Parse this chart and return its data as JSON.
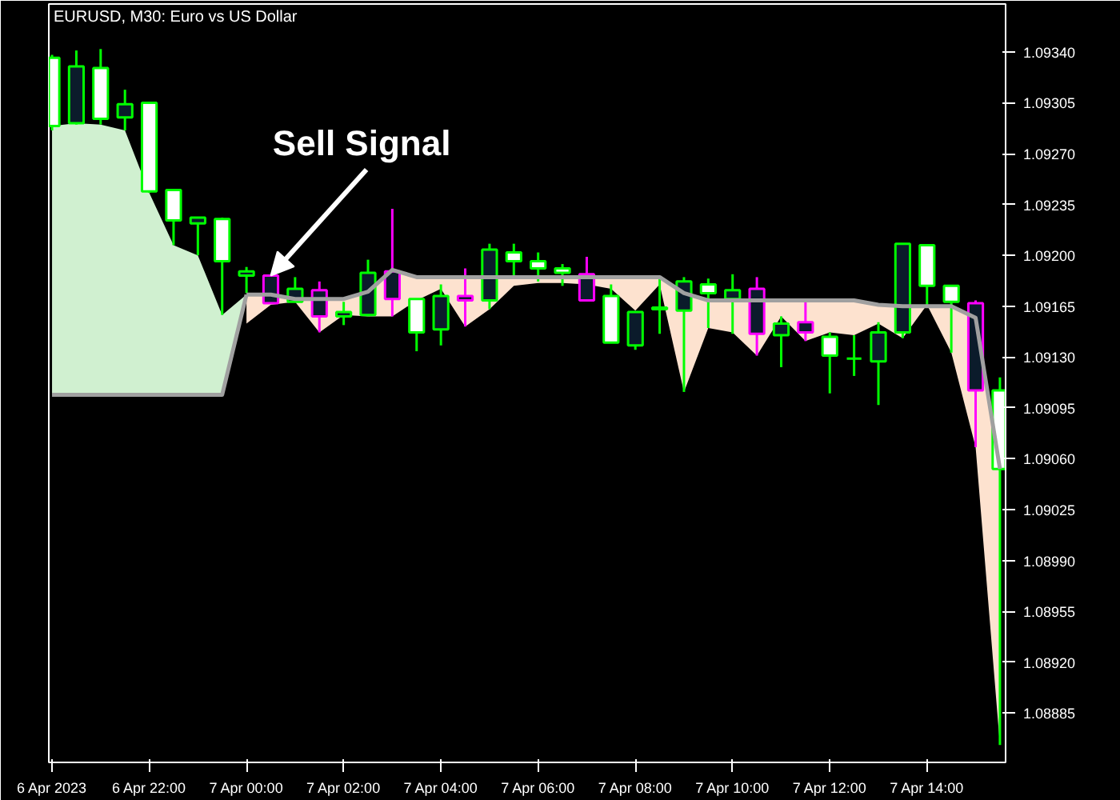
{
  "chart_data": {
    "type": "candlestick",
    "title": "EURUSD, M30:  Euro vs US Dollar",
    "x": [
      "2023-04-06T20:00",
      "2023-04-06T20:30",
      "2023-04-06T21:00",
      "2023-04-06T21:30",
      "2023-04-06T22:00",
      "2023-04-06T22:30",
      "2023-04-06T23:00",
      "2023-04-06T23:30",
      "2023-04-07T00:00",
      "2023-04-07T00:30",
      "2023-04-07T01:00",
      "2023-04-07T01:30",
      "2023-04-07T02:00",
      "2023-04-07T02:30",
      "2023-04-07T03:00",
      "2023-04-07T03:30",
      "2023-04-07T04:00",
      "2023-04-07T04:30",
      "2023-04-07T05:00",
      "2023-04-07T05:30",
      "2023-04-07T06:00",
      "2023-04-07T06:30",
      "2023-04-07T07:00",
      "2023-04-07T07:30",
      "2023-04-07T08:00",
      "2023-04-07T08:30",
      "2023-04-07T09:00",
      "2023-04-07T09:30",
      "2023-04-07T10:00",
      "2023-04-07T10:30",
      "2023-04-07T11:00",
      "2023-04-07T11:30",
      "2023-04-07T12:00",
      "2023-04-07T12:30",
      "2023-04-07T13:00",
      "2023-04-07T13:30",
      "2023-04-07T14:00",
      "2023-04-07T14:30",
      "2023-04-07T15:00",
      "2023-04-07T15:30"
    ],
    "ohlc": [
      [
        1.09289,
        1.09338,
        1.09286,
        1.09336
      ],
      [
        1.0933,
        1.09341,
        1.0929,
        1.09291
      ],
      [
        1.09294,
        1.09342,
        1.0929,
        1.09329
      ],
      [
        1.09304,
        1.09314,
        1.09286,
        1.09295
      ],
      [
        1.09244,
        1.09305,
        1.09243,
        1.09305
      ],
      [
        1.09224,
        1.09245,
        1.09207,
        1.09245
      ],
      [
        1.09226,
        1.09226,
        1.092,
        1.09222
      ],
      [
        1.09196,
        1.09226,
        1.09159,
        1.09225
      ],
      [
        1.09189,
        1.09192,
        1.09174,
        1.09186
      ],
      [
        1.09186,
        1.09186,
        1.09167,
        1.09167
      ],
      [
        1.09177,
        1.09185,
        1.09168,
        1.09168
      ],
      [
        1.09176,
        1.09182,
        1.09147,
        1.09158
      ],
      [
        1.09161,
        1.09168,
        1.09152,
        1.09158
      ],
      [
        1.09188,
        1.09197,
        1.09158,
        1.09159
      ],
      [
        1.09189,
        1.09232,
        1.09158,
        1.0917
      ],
      [
        1.09147,
        1.0917,
        1.09134,
        1.0917
      ],
      [
        1.09172,
        1.0918,
        1.09138,
        1.09149
      ],
      [
        1.09172,
        1.09191,
        1.09151,
        1.09169
      ],
      [
        1.09204,
        1.09208,
        1.09163,
        1.09169
      ],
      [
        1.09196,
        1.09208,
        1.09185,
        1.09202
      ],
      [
        1.09191,
        1.09202,
        1.09182,
        1.09196
      ],
      [
        1.09188,
        1.09194,
        1.09179,
        1.09191
      ],
      [
        1.09187,
        1.09199,
        1.09169,
        1.09169
      ],
      [
        1.0914,
        1.0918,
        1.0914,
        1.09172
      ],
      [
        1.09161,
        1.09161,
        1.09135,
        1.09138
      ],
      [
        1.09164,
        1.09185,
        1.09146,
        1.09163
      ],
      [
        1.09182,
        1.09185,
        1.09106,
        1.09162
      ],
      [
        1.09174,
        1.09184,
        1.0915,
        1.0918
      ],
      [
        1.09176,
        1.09187,
        1.09146,
        1.0917
      ],
      [
        1.09177,
        1.09185,
        1.09131,
        1.09146
      ],
      [
        1.09153,
        1.09158,
        1.09123,
        1.09145
      ],
      [
        1.09154,
        1.09168,
        1.09141,
        1.09147
      ],
      [
        1.09131,
        1.09147,
        1.09105,
        1.09144
      ],
      [
        1.09129,
        1.09145,
        1.09117,
        1.09129
      ],
      [
        1.09147,
        1.09154,
        1.09097,
        1.09127
      ],
      [
        1.09208,
        1.09208,
        1.09143,
        1.09147
      ],
      [
        1.09179,
        1.09207,
        1.09166,
        1.09207
      ],
      [
        1.09168,
        1.09179,
        1.09133,
        1.09179
      ],
      [
        1.09167,
        1.09169,
        1.09068,
        1.09107
      ],
      [
        1.09053,
        1.09116,
        1.08863,
        1.09107
      ]
    ],
    "colors": [
      "#00ff00",
      "#00ff00",
      "#00ff00",
      "#00ff00",
      "#00ff00",
      "#00ff00",
      "#00ff00",
      "#00ff00",
      "#00ff00",
      "#ff00ff",
      "#00ff00",
      "#ff00ff",
      "#00ff00",
      "#00ff00",
      "#ff00ff",
      "#00ff00",
      "#00ff00",
      "#ff00ff",
      "#00ff00",
      "#00ff00",
      "#00ff00",
      "#00ff00",
      "#ff00ff",
      "#00ff00",
      "#00ff00",
      "#00ff00",
      "#00ff00",
      "#00ff00",
      "#00ff00",
      "#ff00ff",
      "#00ff00",
      "#ff00ff",
      "#00ff00",
      "#00ff00",
      "#00ff00",
      "#00ff00",
      "#00ff00",
      "#00ff00",
      "#ff00ff",
      "#00ff00"
    ],
    "series": [
      {
        "type": "line",
        "color": "#a0a0a0",
        "x": [
          "2023-04-06T20:00",
          "2023-04-06T20:30",
          "2023-04-06T21:00",
          "2023-04-06T21:30",
          "2023-04-06T22:00",
          "2023-04-06T22:30",
          "2023-04-06T23:00",
          "2023-04-06T23:30",
          "2023-04-07T00:00"
        ],
        "values": [
          1.09104,
          1.09104,
          1.09104,
          1.09104,
          1.09104,
          1.09104,
          1.09104,
          1.09104,
          1.09173
        ],
        "lower": [
          1.09104,
          1.09104,
          1.09104,
          1.09104,
          1.09104,
          1.09104,
          1.09104,
          1.09104,
          1.09173
        ],
        "upper": [
          1.09289,
          1.09291,
          1.0929,
          1.09286,
          1.09243,
          1.09207,
          1.092,
          1.09159,
          1.09173
        ],
        "colors": [
          "#d0f0d0",
          "#d0f0d0",
          "#d0f0d0",
          "#d0f0d0",
          "#d0f0d0",
          "#d0f0d0",
          "#d0f0d0",
          "#d0f0d0",
          "#d0f0d0"
        ]
      },
      {
        "type": "line",
        "color": "#a0a0a0",
        "x": [
          "2023-04-07T00:00",
          "2023-04-07T00:30",
          "2023-04-07T01:00",
          "2023-04-07T01:30",
          "2023-04-07T02:00",
          "2023-04-07T02:30",
          "2023-04-07T03:00",
          "2023-04-07T03:30",
          "2023-04-07T04:00",
          "2023-04-07T04:30",
          "2023-04-07T05:00",
          "2023-04-07T05:30",
          "2023-04-07T06:00",
          "2023-04-07T06:30",
          "2023-04-07T07:00",
          "2023-04-07T07:30",
          "2023-04-07T08:00",
          "2023-04-07T08:30",
          "2023-04-07T09:00",
          "2023-04-07T09:30",
          "2023-04-07T10:00",
          "2023-04-07T10:30",
          "2023-04-07T11:00",
          "2023-04-07T11:30",
          "2023-04-07T12:00",
          "2023-04-07T12:30",
          "2023-04-07T13:00",
          "2023-04-07T13:30",
          "2023-04-07T14:00",
          "2023-04-07T14:30",
          "2023-04-07T15:00",
          "2023-04-07T15:30"
        ],
        "values": [
          1.09173,
          1.09173,
          1.0917,
          1.0917,
          1.0917,
          1.09175,
          1.0919,
          1.09185,
          1.09185,
          1.09185,
          1.09185,
          1.09185,
          1.09185,
          1.09185,
          1.09185,
          1.09185,
          1.09185,
          1.09185,
          1.09174,
          1.09169,
          1.09169,
          1.09169,
          1.09169,
          1.09169,
          1.09169,
          1.09169,
          1.09166,
          1.09165,
          1.09165,
          1.09165,
          1.09157,
          1.09053
        ],
        "upper": [
          1.09173,
          1.09173,
          1.0917,
          1.0917,
          1.0917,
          1.09175,
          1.0919,
          1.09185,
          1.09185,
          1.09185,
          1.09185,
          1.09185,
          1.09185,
          1.09185,
          1.09185,
          1.09185,
          1.09185,
          1.09185,
          1.09174,
          1.09169,
          1.09169,
          1.09169,
          1.09169,
          1.09169,
          1.09169,
          1.09169,
          1.09166,
          1.09165,
          1.09165,
          1.09165,
          1.09157,
          1.09053
        ],
        "lower": [
          1.09153,
          1.09166,
          1.09168,
          1.09147,
          1.09159,
          1.09158,
          1.09158,
          1.09169,
          1.09177,
          1.09151,
          1.09163,
          1.09179,
          1.09181,
          1.09181,
          1.0918,
          1.09177,
          1.09162,
          1.0918,
          1.09106,
          1.0915,
          1.09147,
          1.09131,
          1.09158,
          1.09141,
          1.09147,
          1.09145,
          1.09153,
          1.09143,
          1.09166,
          1.09133,
          1.09068,
          1.08863
        ],
        "colors": [
          "#fde2cf",
          "#fde2cf",
          "#fde2cf",
          "#fde2cf",
          "#fde2cf",
          "#fde2cf",
          "#fde2cf",
          "#fde2cf",
          "#fde2cf",
          "#fde2cf",
          "#fde2cf",
          "#fde2cf",
          "#fde2cf",
          "#fde2cf",
          "#fde2cf",
          "#fde2cf",
          "#fde2cf",
          "#fde2cf",
          "#fde2cf",
          "#fde2cf",
          "#fde2cf",
          "#fde2cf",
          "#fde2cf",
          "#fde2cf",
          "#fde2cf",
          "#fde2cf",
          "#fde2cf",
          "#fde2cf",
          "#fde2cf",
          "#fde2cf",
          "#fde2cf",
          "#fde2cf"
        ]
      }
    ],
    "annotations": [
      {
        "text": "Sell Signal",
        "x": "2023-04-07T00:30",
        "y": 1.09186
      }
    ],
    "xlim": [
      "2023-04-06T19:56",
      "2023-04-07T15:37"
    ],
    "xticks": [
      {
        "value": "2023-04-06T20:00",
        "label": "6 Apr 2023"
      },
      {
        "value": "2023-04-06T22:00",
        "label": "6 Apr 22:00"
      },
      {
        "value": "2023-04-07T00:00",
        "label": "7 Apr 00:00"
      },
      {
        "value": "2023-04-07T02:00",
        "label": "7 Apr 02:00"
      },
      {
        "value": "2023-04-07T04:00",
        "label": "7 Apr 04:00"
      },
      {
        "value": "2023-04-07T06:00",
        "label": "7 Apr 06:00"
      },
      {
        "value": "2023-04-07T08:00",
        "label": "7 Apr 08:00"
      },
      {
        "value": "2023-04-07T10:00",
        "label": "7 Apr 10:00"
      },
      {
        "value": "2023-04-07T12:00",
        "label": "7 Apr 12:00"
      },
      {
        "value": "2023-04-07T14:00",
        "label": "7 Apr 14:00"
      }
    ],
    "ylim": [
      1.08851,
      1.09373
    ],
    "yticks": [
      {
        "value": 1.0934,
        "label": "1.09340"
      },
      {
        "value": 1.09305,
        "label": "1.09305"
      },
      {
        "value": 1.0927,
        "label": "1.09270"
      },
      {
        "value": 1.09235,
        "label": "1.09235"
      },
      {
        "value": 1.092,
        "label": "1.09200"
      },
      {
        "value": 1.09165,
        "label": "1.09165"
      },
      {
        "value": 1.0913,
        "label": "1.09130"
      },
      {
        "value": 1.09095,
        "label": "1.09095"
      },
      {
        "value": 1.0906,
        "label": "1.09060"
      },
      {
        "value": 1.09025,
        "label": "1.09025"
      },
      {
        "value": 1.0899,
        "label": "1.08990"
      },
      {
        "value": 1.08955,
        "label": "1.08955"
      },
      {
        "value": 1.0892,
        "label": "1.08920"
      },
      {
        "value": 1.08885,
        "label": "1.08885"
      }
    ],
    "grid": false
  }
}
